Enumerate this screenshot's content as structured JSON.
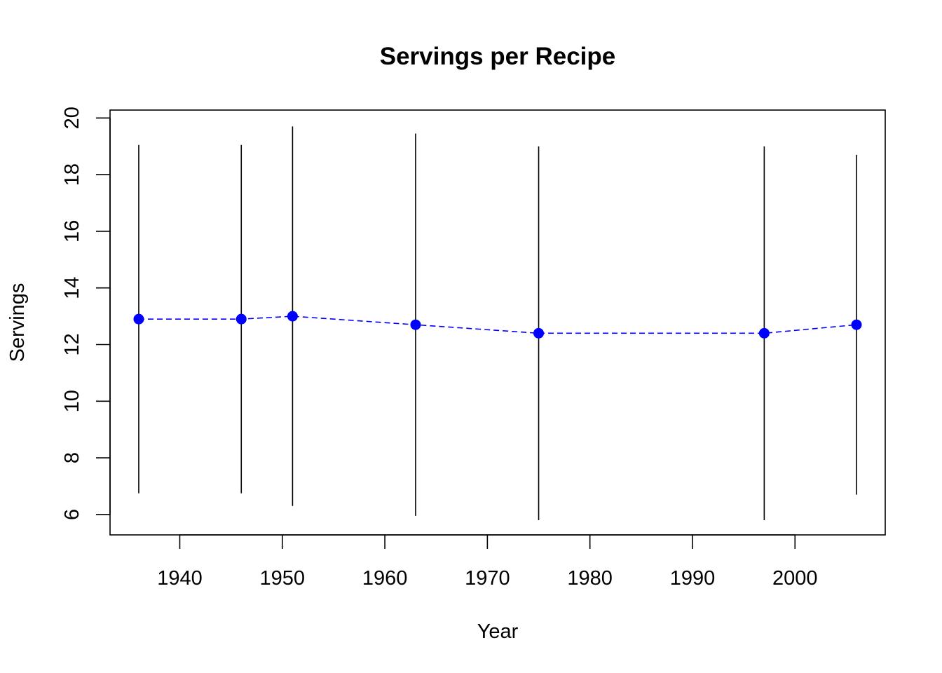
{
  "chart_data": {
    "type": "line",
    "title": "Servings per Recipe",
    "xlabel": "Year",
    "ylabel": "Servings",
    "xlim": [
      1933.2,
      2008.8
    ],
    "ylim": [
      5.28,
      20.28
    ],
    "xticks": [
      1940,
      1950,
      1960,
      1970,
      1980,
      1990,
      2000
    ],
    "yticks": [
      6,
      8,
      10,
      12,
      14,
      16,
      18,
      20
    ],
    "grid": false,
    "legend": "none",
    "colors": {
      "series": "#0000ff",
      "error_bars": "#000000",
      "frame": "#000000"
    },
    "series": [
      {
        "x": [
          1936,
          1946,
          1951,
          1963,
          1975,
          1997,
          2006
        ],
        "y": [
          12.9,
          12.9,
          13.0,
          12.7,
          12.4,
          12.4,
          12.7
        ],
        "lower": [
          6.75,
          6.75,
          6.3,
          5.95,
          5.8,
          5.8,
          6.7
        ],
        "upper": [
          19.05,
          19.05,
          19.7,
          19.45,
          19.0,
          19.0,
          18.7
        ],
        "line_style": "dashed",
        "marker": "filled-circle"
      }
    ]
  }
}
